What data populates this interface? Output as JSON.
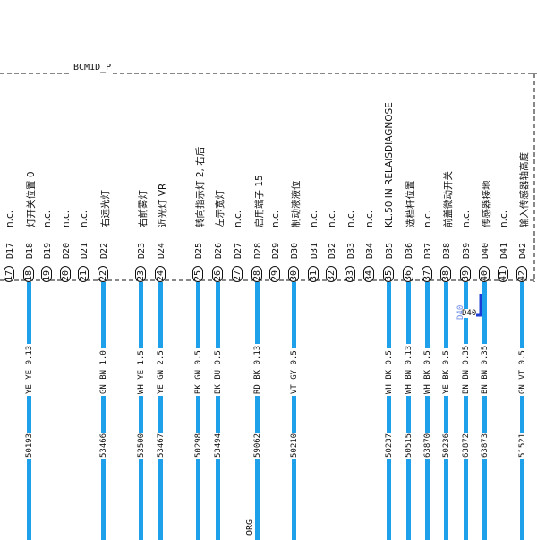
{
  "connector": {
    "name": "BCM1D_P",
    "footer_label": "ORG"
  },
  "marker": {
    "label": "D40",
    "side_label": "D40",
    "color": "#1d3fd6"
  },
  "colors": {
    "wire": "#1ea0ea",
    "line": "#111111"
  },
  "pins": [
    {
      "num": "17",
      "id": "D17",
      "function": "n.c."
    },
    {
      "num": "18",
      "id": "D18",
      "function": "灯开关位置 0",
      "wire": "YE YE 0.13",
      "circuit": "50193"
    },
    {
      "num": "19",
      "id": "D19",
      "function": "n.c."
    },
    {
      "num": "20",
      "id": "D20",
      "function": "n.c."
    },
    {
      "num": "21",
      "id": "D21",
      "function": "n.c."
    },
    {
      "num": "22",
      "id": "D22",
      "function": "右远光灯",
      "wire": "GN BN 1.0",
      "circuit": "53466"
    },
    {
      "num": "23",
      "id": "D23",
      "function": "右前雾灯",
      "wire": "WH YE 1.5",
      "circuit": "53500"
    },
    {
      "num": "24",
      "id": "D24",
      "function": "近光灯 VR",
      "wire": "YE GN 2.5",
      "circuit": "53467"
    },
    {
      "num": "25",
      "id": "D25",
      "function": "转向指示灯 2, 右后",
      "wire": "BK GN 0.5",
      "circuit": "50298"
    },
    {
      "num": "26",
      "id": "D26",
      "function": "左示宽灯",
      "wire": "BK BU 0.5",
      "circuit": "53494"
    },
    {
      "num": "27",
      "id": "D27",
      "function": "n.c."
    },
    {
      "num": "28",
      "id": "D28",
      "function": "启用端子 15",
      "wire": "RD BK 0.13",
      "circuit": "59062"
    },
    {
      "num": "29",
      "id": "D29",
      "function": "n.c."
    },
    {
      "num": "30",
      "id": "D30",
      "function": "制动液液位",
      "wire": "VT GY 0.5",
      "circuit": "50210"
    },
    {
      "num": "31",
      "id": "D31",
      "function": "n.c."
    },
    {
      "num": "32",
      "id": "D32",
      "function": "n.c."
    },
    {
      "num": "33",
      "id": "D33",
      "function": "n.c."
    },
    {
      "num": "34",
      "id": "D34",
      "function": "n.c."
    },
    {
      "num": "35",
      "id": "D35",
      "function": "KL.50 IN RELAISDIAGNOSE",
      "wire": "WH BK 0.5",
      "circuit": "50237"
    },
    {
      "num": "36",
      "id": "D36",
      "function": "选档杆位置",
      "wire": "WH BN 0.13",
      "circuit": "50515"
    },
    {
      "num": "37",
      "id": "D37",
      "function": "n.c.",
      "wire": "WH BK 0.5",
      "circuit": "63870"
    },
    {
      "num": "38",
      "id": "D38",
      "function": "前盖微动开关",
      "wire": "YE BK 0.5",
      "circuit": "50236"
    },
    {
      "num": "39",
      "id": "D39",
      "function": "n.c.",
      "wire": "BN BN 0.35",
      "circuit": "63872"
    },
    {
      "num": "40",
      "id": "D40",
      "function": "传感器接地",
      "wire": "BN BN 0.35",
      "circuit": "63873"
    },
    {
      "num": "41",
      "id": "D41",
      "function": "n.c."
    },
    {
      "num": "42",
      "id": "D42",
      "function": "输入传感器轴高度",
      "wire": "GN VT 0.5",
      "circuit": "51521"
    }
  ]
}
